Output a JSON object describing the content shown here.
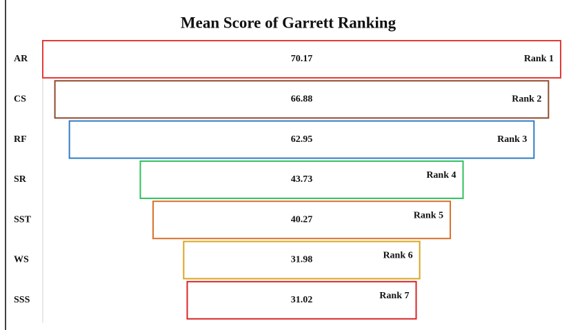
{
  "chart_data": {
    "type": "funnel",
    "title": "Mean Score of Garrett Ranking",
    "categories": [
      "AR",
      "CS",
      "RF",
      "SR",
      "SST",
      "WS",
      "SSS"
    ],
    "values": [
      70.17,
      66.88,
      62.95,
      43.73,
      40.27,
      31.98,
      31.02
    ],
    "rank_labels": [
      "Rank 1",
      "Rank 2",
      "Rank 3",
      "Rank 4",
      "Rank 5",
      "Rank 6",
      "Rank 7"
    ],
    "colors": [
      "#e53935",
      "#8d4a2c",
      "#2f7bc4",
      "#2fbf5c",
      "#d8702a",
      "#d9a51f",
      "#d92424"
    ]
  }
}
